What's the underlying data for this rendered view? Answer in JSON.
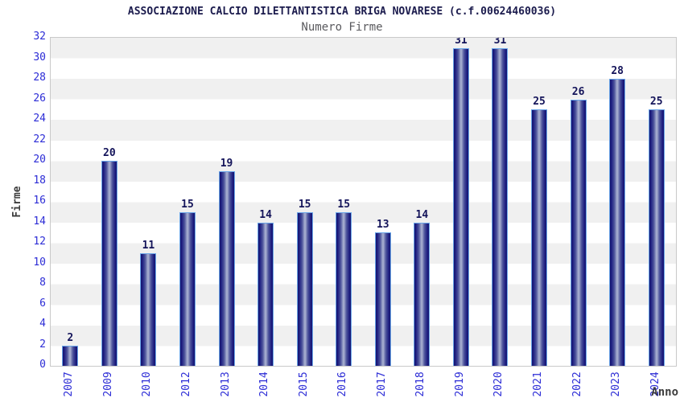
{
  "header": {
    "title": "ASSOCIAZIONE CALCIO DILETTANTISTICA BRIGA NOVARESE (c.f.00624460036)",
    "subtitle": "Numero Firme"
  },
  "chart_data": {
    "type": "bar",
    "title": "ASSOCIAZIONE CALCIO DILETTANTISTICA BRIGA NOVARESE (c.f.00624460036)",
    "subtitle": "Numero Firme",
    "xlabel": "Anno",
    "ylabel": "Firme",
    "categories": [
      "2007",
      "2009",
      "2010",
      "2012",
      "2013",
      "2014",
      "2015",
      "2016",
      "2017",
      "2018",
      "2019",
      "2020",
      "2021",
      "2022",
      "2023",
      "2024"
    ],
    "values": [
      2,
      20,
      11,
      15,
      19,
      14,
      15,
      15,
      13,
      14,
      31,
      31,
      25,
      26,
      28,
      25
    ],
    "ylim": [
      0,
      32
    ],
    "ytick_step": 2,
    "grid": "alternating-horizontal-bands",
    "legend": "none",
    "colors": {
      "bar_edge_dark": "#15156e",
      "bar_center_light": "#a6adcf",
      "bar_border": "#6aa5e8",
      "tick_label_blue": "#2c2cd6",
      "value_label_navy": "#14145a",
      "title_navy": "#1b1b4d",
      "subtitle_gray": "#5a5a5e",
      "axis_label_gray": "#3c3c3c",
      "band_gray": "#f0f0f0",
      "plot_border": "#c9c9c9"
    }
  }
}
